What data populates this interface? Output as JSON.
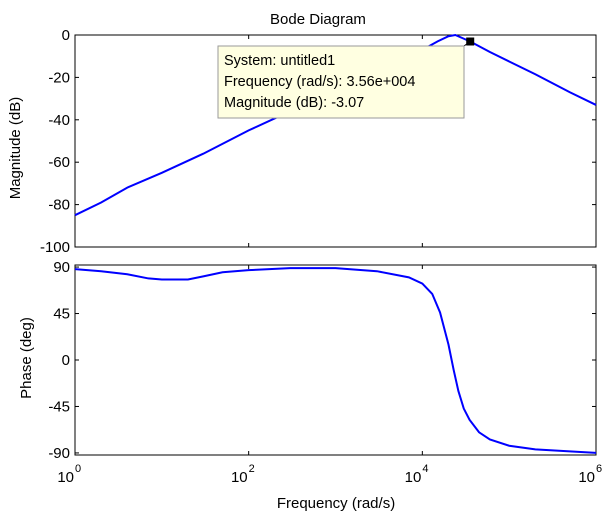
{
  "chart_data": {
    "type": "line",
    "title": "Bode Diagram",
    "xlabel": "Frequency  (rad/s)",
    "x_scale": "log",
    "xlim": [
      1,
      1000000
    ],
    "x_ticks": [
      {
        "value": 1,
        "base": "10",
        "exp": "0"
      },
      {
        "value": 100,
        "base": "10",
        "exp": "2"
      },
      {
        "value": 10000,
        "base": "10",
        "exp": "4"
      },
      {
        "value": 1000000,
        "base": "10",
        "exp": "6"
      }
    ],
    "color": "#0000ff",
    "panels": [
      {
        "name": "magnitude",
        "ylabel": "Magnitude (dB)",
        "ylim": [
          -100,
          0
        ],
        "y_ticks": [
          {
            "value": 0,
            "label": "0"
          },
          {
            "value": -20,
            "label": "-20"
          },
          {
            "value": -40,
            "label": "-40"
          },
          {
            "value": -60,
            "label": "-60"
          },
          {
            "value": -80,
            "label": "-80"
          },
          {
            "value": -100,
            "label": "-100"
          }
        ],
        "x": [
          1,
          2,
          4,
          10,
          30,
          100,
          300,
          1000,
          3000,
          10000,
          15000,
          20000,
          24000,
          35600,
          60000,
          100000,
          200000,
          500000,
          1000000
        ],
        "y": [
          -85,
          -79,
          -72,
          -65,
          -56,
          -45,
          -36,
          -26.5,
          -17,
          -7,
          -3,
          -0.6,
          0,
          -3.07,
          -8,
          -12.5,
          -18.5,
          -27,
          -33
        ]
      },
      {
        "name": "phase",
        "ylabel": "Phase (deg)",
        "ylim": [
          -92,
          92
        ],
        "y_ticks": [
          {
            "value": 90,
            "label": "90"
          },
          {
            "value": 45,
            "label": "45"
          },
          {
            "value": 0,
            "label": "0"
          },
          {
            "value": -45,
            "label": "-45"
          },
          {
            "value": -90,
            "label": "-90"
          }
        ],
        "x": [
          1,
          2,
          4,
          7,
          10,
          20,
          30,
          50,
          100,
          300,
          1000,
          3000,
          7000,
          10000,
          13000,
          16000,
          20000,
          23000,
          26000,
          30000,
          35000,
          45000,
          60000,
          100000,
          200000,
          500000,
          1000000
        ],
        "y": [
          88,
          86,
          83,
          79,
          78,
          78,
          81,
          85,
          87,
          89,
          89,
          86,
          80,
          74,
          64,
          46,
          15,
          -10,
          -30,
          -47,
          -58,
          -70,
          -77,
          -83,
          -86.5,
          -88.5,
          -90
        ]
      }
    ],
    "datatip": {
      "panel": "magnitude",
      "x": 35600,
      "y": -3.07,
      "lines": [
        "System: untitled1",
        "Frequency (rad/s): 3.56e+004",
        "Magnitude (dB): -3.07"
      ]
    }
  }
}
